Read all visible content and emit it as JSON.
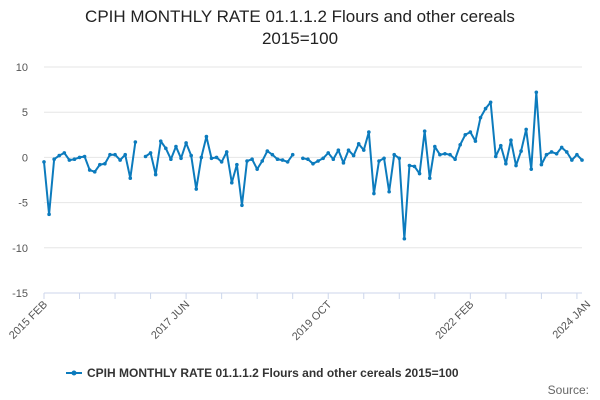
{
  "chart_data": {
    "type": "line",
    "title": "CPIH MONTHLY RATE 01.1.1.2 Flours and other cereals\n2015=100",
    "xlabel": "",
    "ylabel": "",
    "ylim": [
      -15,
      10
    ],
    "yticks": [
      10,
      5,
      0,
      -5,
      -10,
      -15
    ],
    "grid": true,
    "legend_position": "bottom",
    "x_tick_labels": [
      {
        "index": 0,
        "label": "2015 FEB"
      },
      {
        "index": 28,
        "label": "2017 JUN"
      },
      {
        "index": 56,
        "label": "2019 OCT"
      },
      {
        "index": 84,
        "label": "2022 FEB"
      },
      {
        "index": 107,
        "label": "2024 JAN"
      }
    ],
    "x_minor_tick_interval": 7,
    "series": [
      {
        "name": "CPIH MONTHLY RATE 01.1.1.2 Flours and other cereals 2015=100",
        "color": "#0c7bbd",
        "values": [
          -0.5,
          -6.3,
          -0.2,
          0.2,
          0.5,
          -0.3,
          -0.2,
          0.0,
          0.1,
          -1.4,
          -1.6,
          -0.8,
          -0.7,
          0.3,
          0.3,
          -0.3,
          0.3,
          -2.3,
          1.7,
          null,
          0.1,
          0.5,
          -1.9,
          1.8,
          1.0,
          -0.2,
          1.2,
          -0.1,
          1.6,
          0.2,
          -3.5,
          0.0,
          2.3,
          -0.1,
          0.0,
          -0.5,
          0.6,
          -2.8,
          -0.8,
          -5.3,
          -0.4,
          -0.2,
          -1.3,
          -0.4,
          0.7,
          0.3,
          -0.2,
          -0.3,
          -0.5,
          0.3,
          null,
          -0.1,
          -0.2,
          -0.7,
          -0.4,
          -0.1,
          0.5,
          -0.2,
          0.8,
          -0.6,
          0.8,
          0.2,
          1.5,
          0.8,
          2.8,
          -4.0,
          -0.4,
          -0.1,
          -3.8,
          0.3,
          -0.1,
          -9.0,
          -0.9,
          -1.0,
          -1.8,
          2.9,
          -2.3,
          1.2,
          0.3,
          0.4,
          0.3,
          -0.2,
          1.4,
          2.5,
          2.8,
          1.8,
          4.4,
          5.4,
          6.1,
          0.1,
          1.3,
          -0.7,
          1.9,
          -0.9,
          0.7,
          3.1,
          -1.3,
          7.2,
          -0.8,
          0.3,
          0.6,
          0.4,
          1.1,
          0.6,
          -0.3,
          0.3,
          -0.3
        ]
      }
    ]
  },
  "credits": "Source:"
}
